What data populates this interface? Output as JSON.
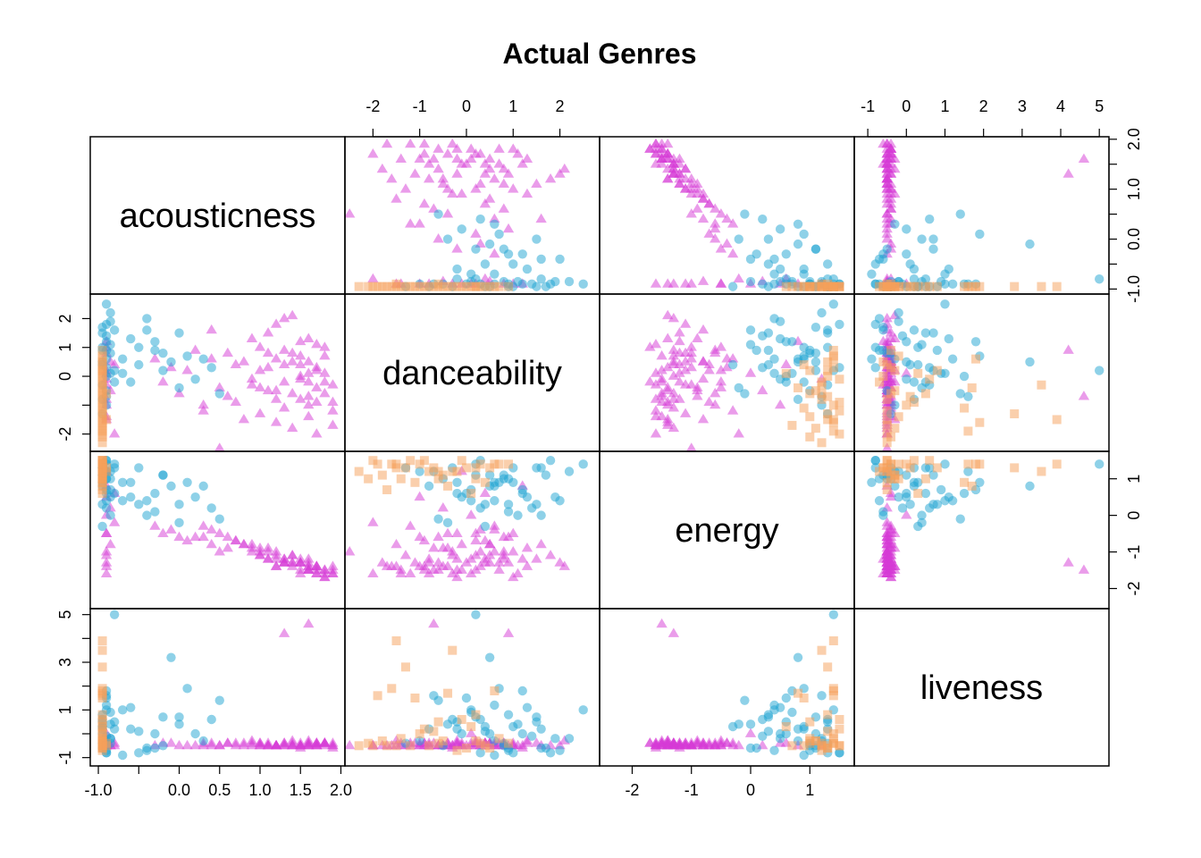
{
  "chart_data": {
    "type": "scatter",
    "title": "Actual Genres",
    "variables": [
      {
        "name": "acousticness",
        "range": [
          -1.1,
          2.05
        ],
        "ticks": [
          -1.0,
          -0.5,
          0.0,
          0.5,
          1.0,
          1.5,
          2.0
        ],
        "tick_labels": [
          "-1.0",
          "",
          "0.0",
          "0.5",
          "1.0",
          "1.5",
          "2.0"
        ],
        "right_ticks": [
          -1.0,
          -0.5,
          0.0,
          0.5,
          1.0,
          1.5,
          2.0
        ],
        "right_tick_labels": [
          "-1.0",
          "",
          "0.0",
          "",
          "1.0",
          "",
          "2.0"
        ]
      },
      {
        "name": "danceability",
        "range": [
          -2.6,
          2.85
        ],
        "ticks": [
          -2,
          -1,
          0,
          1,
          2
        ],
        "tick_labels": [
          "-2",
          "-1",
          "0",
          "1",
          "2"
        ],
        "left_ticks": [
          -2,
          -1,
          0,
          1,
          2
        ],
        "left_tick_labels": [
          "-2",
          "",
          "0",
          "1",
          "2"
        ]
      },
      {
        "name": "energy",
        "range": [
          -2.55,
          1.75
        ],
        "ticks": [
          -2,
          -1,
          0,
          1
        ],
        "tick_labels": [
          "-2",
          "-1",
          "0",
          "1"
        ]
      },
      {
        "name": "liveness",
        "range": [
          -1.35,
          5.25
        ],
        "ticks": [
          -1,
          0,
          1,
          2,
          3,
          4,
          5
        ],
        "tick_labels": [
          "-1",
          "0",
          "1",
          "2",
          "3",
          "4",
          "5"
        ],
        "left_ticks": [
          -1,
          0,
          1,
          2,
          3,
          4,
          5
        ],
        "left_tick_labels": [
          "-1",
          "",
          "1",
          "",
          "3",
          "",
          "5"
        ]
      }
    ],
    "series": [
      {
        "color": "#d63ad6",
        "marker": "triangle",
        "points": [
          [
            1.8,
            -0.6,
            -1.5,
            -0.5
          ],
          [
            1.7,
            -0.9,
            -1.4,
            -0.4
          ],
          [
            1.6,
            0.1,
            -1.2,
            -0.5
          ],
          [
            1.5,
            0.4,
            -1.3,
            -0.4
          ],
          [
            1.9,
            -0.3,
            -1.6,
            -0.6
          ],
          [
            1.4,
            0.8,
            -1.1,
            -0.5
          ],
          [
            1.3,
            -1.1,
            -1.3,
            -0.4
          ],
          [
            1.7,
            0.3,
            -1.4,
            -0.5
          ],
          [
            1.6,
            -0.2,
            -1.5,
            -0.3
          ],
          [
            1.2,
            0.6,
            -1.0,
            -0.5
          ],
          [
            1.8,
            1.0,
            -1.7,
            -0.4
          ],
          [
            1.1,
            -0.5,
            -0.9,
            -0.5
          ],
          [
            1.5,
            1.2,
            -1.2,
            -0.6
          ],
          [
            1.0,
            0.2,
            -1.1,
            -0.4
          ],
          [
            1.9,
            -1.2,
            -1.6,
            -0.5
          ],
          [
            1.3,
            0.9,
            -1.3,
            4.2
          ],
          [
            1.6,
            -0.7,
            -1.5,
            4.6
          ],
          [
            1.2,
            -1.6,
            -1.4,
            -0.5
          ],
          [
            0.8,
            0.5,
            -0.8,
            -0.4
          ],
          [
            0.9,
            -0.3,
            -1.0,
            -0.5
          ],
          [
            1.4,
            2.1,
            -1.4,
            -0.3
          ],
          [
            1.7,
            -2.0,
            -1.6,
            -0.5
          ],
          [
            1.1,
            1.5,
            -1.2,
            -0.4
          ],
          [
            0.7,
            -0.9,
            -0.7,
            -0.5
          ],
          [
            0.6,
            0.8,
            -0.6,
            -0.4
          ],
          [
            1.0,
            -1.3,
            -1.1,
            -0.5
          ],
          [
            1.5,
            0.0,
            -1.3,
            -0.5
          ],
          [
            1.8,
            0.7,
            -1.5,
            -0.4
          ],
          [
            1.2,
            -0.8,
            -1.2,
            -0.5
          ],
          [
            0.9,
            1.3,
            -0.9,
            -0.3
          ],
          [
            1.6,
            -1.0,
            -1.4,
            -0.5
          ],
          [
            1.3,
            0.4,
            -1.2,
            -0.4
          ],
          [
            0.5,
            -0.4,
            -0.5,
            -0.5
          ],
          [
            0.4,
            0.6,
            -0.4,
            -0.4
          ],
          [
            1.7,
            1.1,
            -1.6,
            -0.5
          ],
          [
            1.4,
            -0.6,
            -1.3,
            -0.5
          ],
          [
            0.3,
            -1.2,
            -0.3,
            -0.4
          ],
          [
            0.2,
            0.9,
            -0.6,
            -0.5
          ],
          [
            1.5,
            -0.1,
            -1.5,
            -0.5
          ],
          [
            1.9,
            -0.9,
            -1.5,
            -0.4
          ],
          [
            1.1,
            0.3,
            -1.0,
            -0.5
          ],
          [
            1.6,
            0.5,
            -1.3,
            -0.4
          ],
          [
            0.8,
            -1.5,
            -0.8,
            -0.5
          ],
          [
            1.2,
            1.8,
            -1.1,
            -0.5
          ],
          [
            1.7,
            -0.4,
            -1.4,
            -0.4
          ],
          [
            0.1,
            0.2,
            -0.7,
            -0.5
          ],
          [
            0.6,
            -0.7,
            -0.9,
            -0.4
          ],
          [
            1.0,
            1.0,
            -1.0,
            -0.5
          ],
          [
            1.4,
            -1.8,
            -1.3,
            -0.5
          ],
          [
            1.8,
            0.1,
            -1.6,
            -0.4
          ],
          [
            1.3,
            -0.2,
            -1.2,
            -0.5
          ],
          [
            0.7,
            0.4,
            -0.7,
            -0.4
          ],
          [
            1.5,
            0.7,
            -1.3,
            -0.5
          ],
          [
            1.6,
            -1.4,
            -1.5,
            -0.5
          ],
          [
            0.9,
            -0.1,
            -0.8,
            -0.4
          ],
          [
            1.1,
            0.8,
            -1.2,
            -0.5
          ],
          [
            1.7,
            0.2,
            -1.5,
            -0.4
          ],
          [
            1.2,
            -0.5,
            -1.4,
            -0.5
          ],
          [
            1.4,
            0.5,
            -1.1,
            -0.4
          ],
          [
            1.9,
            -1.7,
            -1.4,
            -0.5
          ],
          [
            1.5,
            -0.8,
            -1.6,
            -0.5
          ],
          [
            1.0,
            -0.4,
            -0.9,
            -0.4
          ],
          [
            0.4,
            1.6,
            -0.8,
            -0.5
          ],
          [
            1.6,
            1.3,
            -1.4,
            -0.4
          ],
          [
            0.0,
            -0.6,
            -0.6,
            -0.5
          ],
          [
            -0.1,
            0.3,
            -0.4,
            -0.4
          ],
          [
            0.3,
            -1.0,
            -0.6,
            -0.5
          ],
          [
            1.3,
            2.0,
            -1.3,
            -0.5
          ],
          [
            -0.2,
            -0.2,
            -0.5,
            -0.4
          ],
          [
            -0.3,
            0.6,
            -0.3,
            -0.5
          ],
          [
            0.5,
            -2.5,
            -1.0,
            -0.5
          ],
          [
            1.8,
            -0.2,
            -1.7,
            -0.4
          ],
          [
            -0.9,
            -1.0,
            0.5,
            -0.4
          ],
          [
            -0.9,
            0.2,
            -0.5,
            -0.3
          ],
          [
            -0.85,
            -0.5,
            0.2,
            -0.5
          ],
          [
            -0.9,
            0.8,
            -1.0,
            -0.4
          ],
          [
            -0.8,
            -2.0,
            -0.2,
            -0.5
          ],
          [
            -0.9,
            1.2,
            0.8,
            -0.5
          ],
          [
            -0.9,
            -1.4,
            -1.6,
            -0.4
          ],
          [
            -0.85,
            0.5,
            -0.8,
            -0.5
          ],
          [
            -0.9,
            -0.1,
            1.2,
            -0.5
          ],
          [
            -0.9,
            -0.8,
            -1.3,
            -0.4
          ],
          [
            -0.9,
            0.1,
            0.0,
            0.0
          ],
          [
            -0.9,
            1.0,
            -0.5,
            -0.5
          ],
          [
            -0.8,
            0.4,
            0.6,
            -0.4
          ],
          [
            -0.9,
            -0.3,
            -1.1,
            -0.5
          ],
          [
            -0.9,
            -1.5,
            -1.4,
            -0.3
          ]
        ]
      },
      {
        "color": "#1ea3d1",
        "marker": "circle",
        "points": [
          [
            -0.95,
            1.5,
            1.3,
            0.5
          ],
          [
            -0.9,
            2.5,
            1.4,
            1.0
          ],
          [
            -0.85,
            2.2,
            1.2,
            -0.2
          ],
          [
            -0.95,
            1.0,
            0.9,
            0.3
          ],
          [
            -0.9,
            1.8,
            1.5,
            -0.8
          ],
          [
            -0.95,
            0.5,
            1.1,
            0.0
          ],
          [
            -0.9,
            1.2,
            0.7,
            1.8
          ],
          [
            -0.95,
            -0.3,
            1.3,
            0.6
          ],
          [
            -0.85,
            0.8,
            1.0,
            -0.4
          ],
          [
            -0.9,
            0.0,
            0.6,
            1.5
          ],
          [
            -0.8,
            1.6,
            1.3,
            0.2
          ],
          [
            -0.7,
            0.6,
            0.9,
            -0.9
          ],
          [
            -0.6,
            1.3,
            0.5,
            1.1
          ],
          [
            -0.5,
            0.4,
            0.3,
            0.1
          ],
          [
            -0.4,
            2.0,
            0.4,
            -0.7
          ],
          [
            -0.3,
            0.9,
            0.1,
            -0.6
          ],
          [
            -0.2,
            0.2,
            1.1,
            0.7
          ],
          [
            -0.1,
            0.5,
            0.8,
            3.2
          ],
          [
            0.0,
            -0.4,
            -0.2,
            0.4
          ],
          [
            0.1,
            0.7,
            0.9,
            1.9
          ],
          [
            0.2,
            -0.1,
            0.5,
            0.0
          ],
          [
            0.4,
            0.3,
            0.2,
            0.6
          ],
          [
            0.5,
            -0.6,
            -0.1,
            1.4
          ],
          [
            -0.8,
            0.2,
            1.4,
            5.0
          ],
          [
            -0.9,
            -0.5,
            1.0,
            -0.5
          ],
          [
            -0.95,
            0.9,
            0.3,
            0.8
          ],
          [
            -0.9,
            -1.0,
            1.2,
            -0.3
          ],
          [
            -0.85,
            1.1,
            0.0,
            0.4
          ],
          [
            -0.9,
            0.3,
            1.5,
            -0.8
          ],
          [
            -0.95,
            -0.8,
            0.8,
            0.2
          ],
          [
            -0.9,
            0.6,
            0.4,
            1.2
          ],
          [
            -0.95,
            1.7,
            1.1,
            -0.6
          ],
          [
            -0.8,
            -0.2,
            0.6,
            0.5
          ],
          [
            -0.9,
            1.4,
            0.2,
            -0.1
          ],
          [
            -0.95,
            -1.3,
            1.3,
            -0.4
          ],
          [
            -0.85,
            0.1,
            0.7,
            0.9
          ],
          [
            -0.9,
            0.9,
            1.0,
            -0.7
          ],
          [
            -0.95,
            0.4,
            -0.3,
            0.3
          ],
          [
            -0.9,
            -0.7,
            1.2,
            1.6
          ],
          [
            -0.85,
            1.9,
            0.5,
            -0.2
          ],
          [
            -0.3,
            1.2,
            0.6,
            0.0
          ],
          [
            -0.2,
            0.8,
            1.1,
            -0.5
          ],
          [
            0.0,
            1.5,
            0.3,
            0.7
          ],
          [
            0.3,
            0.6,
            0.8,
            -0.3
          ],
          [
            -0.6,
            -0.2,
            0.9,
            0.2
          ],
          [
            -0.5,
            1.0,
            1.3,
            -0.8
          ],
          [
            -0.7,
            0.1,
            0.4,
            1.0
          ],
          [
            -0.4,
            1.6,
            0.0,
            -0.6
          ]
        ]
      },
      {
        "color": "#f5a05a",
        "marker": "square",
        "points": [
          [
            -0.95,
            -1.5,
            1.4,
            3.9
          ],
          [
            -0.95,
            -0.3,
            1.2,
            3.5
          ],
          [
            -0.95,
            0.6,
            1.4,
            1.8
          ],
          [
            -0.95,
            -1.1,
            0.9,
            1.5
          ],
          [
            -0.95,
            0.2,
            1.3,
            0.8
          ],
          [
            -0.95,
            -2.0,
            1.5,
            -0.5
          ],
          [
            -0.95,
            -0.6,
            1.0,
            0.5
          ],
          [
            -0.95,
            0.9,
            1.4,
            -0.4
          ],
          [
            -0.95,
            -1.8,
            1.1,
            -0.3
          ],
          [
            -0.95,
            -0.9,
            1.5,
            0.2
          ],
          [
            -0.95,
            0.0,
            1.3,
            -0.6
          ],
          [
            -0.95,
            -2.3,
            1.2,
            -0.5
          ],
          [
            -0.95,
            -0.4,
            0.8,
            1.7
          ],
          [
            -0.95,
            0.3,
            1.4,
            -0.4
          ],
          [
            -0.95,
            -1.4,
            1.0,
            -0.2
          ],
          [
            -0.95,
            -0.7,
            1.3,
            0.1
          ],
          [
            -0.95,
            -1.2,
            1.5,
            -0.5
          ],
          [
            -0.95,
            0.1,
            0.6,
            0.3
          ],
          [
            -0.95,
            -0.2,
            1.2,
            -0.7
          ],
          [
            -0.95,
            -1.6,
            1.4,
            1.9
          ],
          [
            -0.95,
            0.4,
            0.9,
            -0.5
          ],
          [
            -0.95,
            -0.5,
            1.1,
            -0.3
          ],
          [
            -0.95,
            -1.0,
            1.4,
            0.0
          ],
          [
            -0.95,
            0.5,
            1.3,
            -0.6
          ],
          [
            -0.95,
            -2.1,
            1.0,
            -0.4
          ],
          [
            -0.95,
            -0.1,
            1.5,
            0.6
          ],
          [
            -0.95,
            -0.8,
            1.2,
            -0.5
          ],
          [
            -0.95,
            -1.3,
            1.3,
            2.8
          ],
          [
            -0.95,
            0.7,
            1.4,
            -0.2
          ],
          [
            -0.95,
            -1.7,
            0.7,
            -0.5
          ],
          [
            -0.9,
            -0.6,
            1.2,
            -0.4
          ],
          [
            -0.95,
            -1.9,
            1.4,
            1.6
          ],
          [
            -0.95,
            0.2,
            1.0,
            -0.3
          ],
          [
            -0.9,
            -1.5,
            1.3,
            -0.5
          ]
        ]
      }
    ]
  }
}
